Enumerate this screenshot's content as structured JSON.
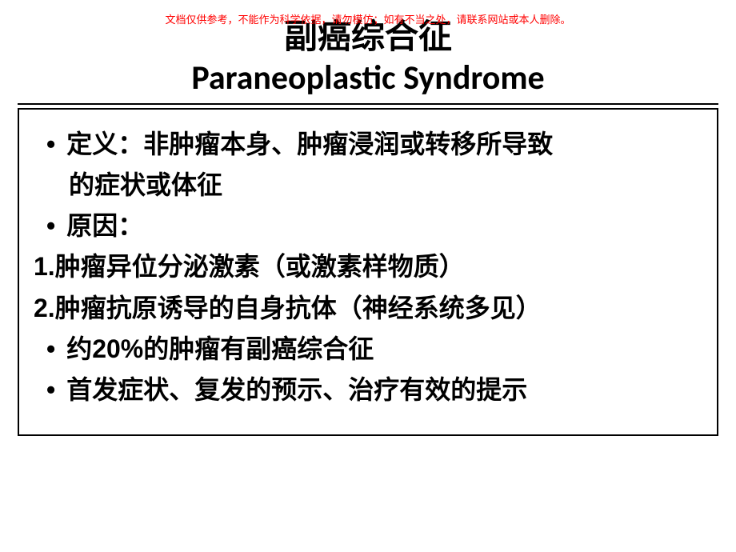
{
  "disclaimer": "文档仅供参考，不能作为科学依据，请勿模仿；如有不当之处，请联系网站或本人删除。",
  "title": {
    "line1": "副癌综合征",
    "line2": "Paraneoplastic Syndrome"
  },
  "content": {
    "item1_a": "定义：非肿瘤本身、肿瘤浸润或转移所导致",
    "item1_b": "的症状或体征",
    "item2": "原因：",
    "num1": "1.肿瘤异位分泌激素（或激素样物质）",
    "num2": "2.肿瘤抗原诱导的自身抗体（神经系统多见）",
    "item3": "约20%的肿瘤有副癌综合征",
    "item4": "首发症状、复发的预示、治疗有效的提示"
  },
  "colors": {
    "disclaimer_color": "#ff0000",
    "text_color": "#000000",
    "border_color": "#000000",
    "background": "#ffffff"
  },
  "typography": {
    "title_fontsize": 42,
    "body_fontsize": 32,
    "disclaimer_fontsize": 13
  }
}
